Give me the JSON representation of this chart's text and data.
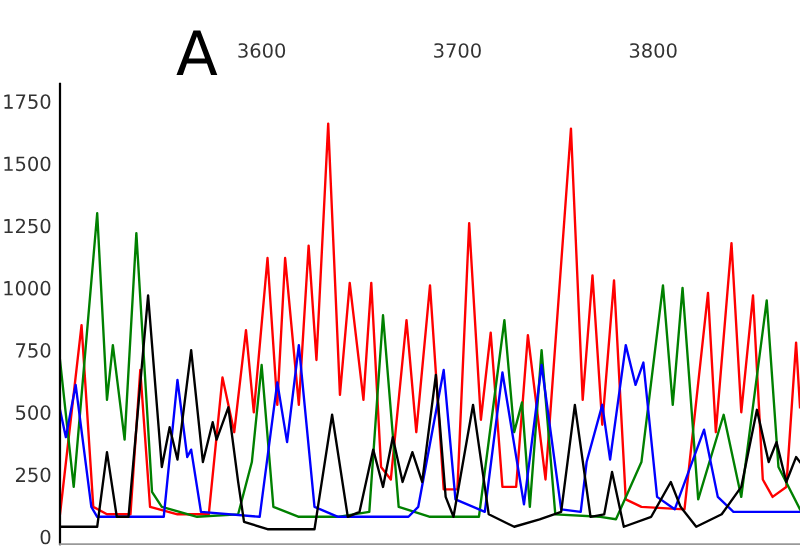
{
  "chart_data": {
    "type": "line",
    "annotations": [
      "A"
    ],
    "xlim": [
      3497,
      3875
    ],
    "ylim": [
      -30,
      1820
    ],
    "xticks": [
      3600,
      3700,
      3800
    ],
    "yticks": [
      0,
      250,
      500,
      750,
      1000,
      1250,
      1500,
      1750
    ],
    "grid": false,
    "legend": false,
    "marker": "none",
    "line_style": "solid",
    "series": [
      {
        "color": "#ff0000",
        "x": [
          3497,
          3508,
          3514,
          3521,
          3533,
          3538,
          3543,
          3557,
          3573,
          3580,
          3586,
          3592,
          3596,
          3603,
          3608,
          3612,
          3619,
          3624,
          3628,
          3634,
          3640,
          3645,
          3652,
          3656,
          3661,
          3666,
          3674,
          3679,
          3686,
          3693,
          3700,
          3706,
          3712,
          3717,
          3723,
          3730,
          3736,
          3745,
          3758,
          3764,
          3769,
          3774,
          3780,
          3786,
          3794,
          3816,
          3828,
          3832,
          3840,
          3845,
          3851,
          3856,
          3861,
          3868,
          3873,
          3875
        ],
        "values": [
          90,
          850,
          120,
          90,
          90,
          670,
          120,
          90,
          90,
          640,
          420,
          830,
          500,
          1120,
          530,
          1120,
          530,
          1170,
          710,
          1660,
          570,
          1020,
          550,
          1020,
          280,
          230,
          870,
          420,
          1010,
          190,
          190,
          1260,
          470,
          820,
          200,
          200,
          810,
          230,
          1640,
          550,
          1050,
          450,
          1030,
          150,
          120,
          110,
          980,
          420,
          1180,
          500,
          970,
          230,
          160,
          200,
          780,
          520
        ]
      },
      {
        "color": "#008000",
        "x": [
          3497,
          3504,
          3516,
          3521,
          3524,
          3530,
          3536,
          3544,
          3549,
          3567,
          3588,
          3595,
          3600,
          3606,
          3619,
          3639,
          3655,
          3662,
          3670,
          3686,
          3711,
          3724,
          3729,
          3733,
          3737,
          3743,
          3750,
          3773,
          3781,
          3794,
          3805,
          3810,
          3815,
          3823,
          3836,
          3845,
          3858,
          3864,
          3875
        ],
        "values": [
          710,
          200,
          1300,
          550,
          770,
          390,
          1220,
          180,
          120,
          80,
          90,
          300,
          690,
          120,
          80,
          80,
          100,
          890,
          120,
          80,
          80,
          870,
          420,
          540,
          120,
          750,
          90,
          80,
          70,
          300,
          1010,
          530,
          1000,
          150,
          490,
          160,
          950,
          280,
          110
        ]
      },
      {
        "color": "#0000ff",
        "x": [
          3497,
          3500,
          3505,
          3513,
          3516,
          3550,
          3557,
          3562,
          3564,
          3569,
          3599,
          3608,
          3613,
          3619,
          3627,
          3639,
          3675,
          3680,
          3693,
          3699,
          3714,
          3723,
          3734,
          3743,
          3753,
          3763,
          3766,
          3774,
          3778,
          3786,
          3791,
          3795,
          3802,
          3811,
          3826,
          3833,
          3841,
          3875
        ],
        "values": [
          510,
          400,
          610,
          120,
          80,
          80,
          630,
          320,
          350,
          100,
          80,
          620,
          380,
          770,
          120,
          80,
          80,
          120,
          670,
          150,
          100,
          660,
          130,
          690,
          110,
          100,
          300,
          530,
          310,
          770,
          610,
          700,
          160,
          110,
          430,
          160,
          100,
          100
        ]
      },
      {
        "color": "#000000",
        "x": [
          3497,
          3516,
          3521,
          3526,
          3532,
          3542,
          3549,
          3553,
          3557,
          3564,
          3570,
          3575,
          3577,
          3583,
          3588,
          3591,
          3603,
          3627,
          3636,
          3644,
          3650,
          3657,
          3662,
          3667,
          3672,
          3677,
          3682,
          3689,
          3694,
          3698,
          3708,
          3716,
          3729,
          3742,
          3753,
          3760,
          3768,
          3775,
          3779,
          3785,
          3799,
          3809,
          3814,
          3822,
          3835,
          3845,
          3853,
          3859,
          3863,
          3868,
          3873,
          3875
        ],
        "values": [
          40,
          40,
          340,
          80,
          80,
          970,
          280,
          440,
          310,
          750,
          300,
          460,
          390,
          520,
          220,
          60,
          30,
          30,
          490,
          80,
          100,
          350,
          200,
          400,
          220,
          340,
          220,
          650,
          160,
          80,
          530,
          90,
          40,
          70,
          100,
          530,
          80,
          90,
          260,
          40,
          80,
          220,
          120,
          40,
          90,
          200,
          510,
          300,
          380,
          220,
          320,
          300
        ]
      }
    ]
  }
}
